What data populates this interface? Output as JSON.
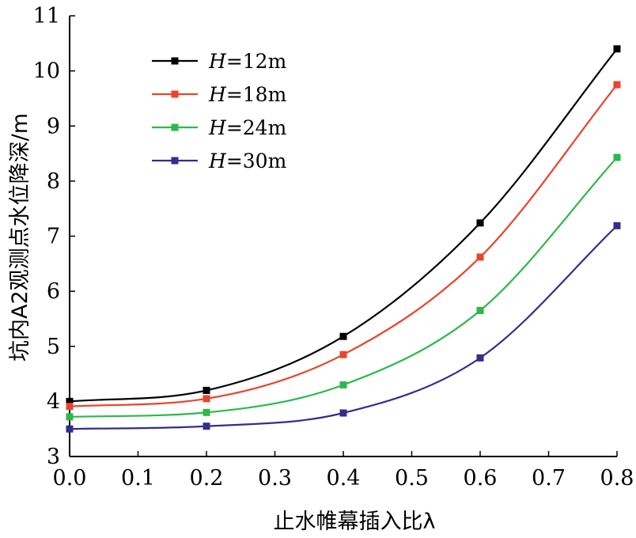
{
  "chart_data": {
    "type": "line",
    "xlabel": "止水帷幕插入比λ",
    "ylabel": "坑内A2观测点水位降深/m",
    "xlim": [
      0,
      0.8
    ],
    "ylim": [
      3,
      11
    ],
    "x_ticks": [
      "0.0",
      "0.1",
      "0.2",
      "0.3",
      "0.4",
      "0.5",
      "0.6",
      "0.7",
      "0.8"
    ],
    "y_ticks": [
      "3",
      "4",
      "5",
      "6",
      "7",
      "8",
      "9",
      "10",
      "11"
    ],
    "legend_position": "top-left",
    "x": [
      0.0,
      0.2,
      0.4,
      0.6,
      0.8
    ],
    "series": [
      {
        "name_var": "H",
        "name_rest": "=12m",
        "color": "#000000",
        "values": [
          4.0,
          4.2,
          5.18,
          7.24,
          10.4
        ]
      },
      {
        "name_var": "H",
        "name_rest": "=18m",
        "color": "#e8452c",
        "values": [
          3.91,
          4.05,
          4.85,
          6.62,
          9.75
        ]
      },
      {
        "name_var": "H",
        "name_rest": "=24m",
        "color": "#2db84a",
        "values": [
          3.72,
          3.8,
          4.3,
          5.65,
          8.43
        ]
      },
      {
        "name_var": "H",
        "name_rest": "=30m",
        "color": "#332e8c",
        "values": [
          3.5,
          3.55,
          3.79,
          4.79,
          7.19
        ]
      }
    ]
  }
}
